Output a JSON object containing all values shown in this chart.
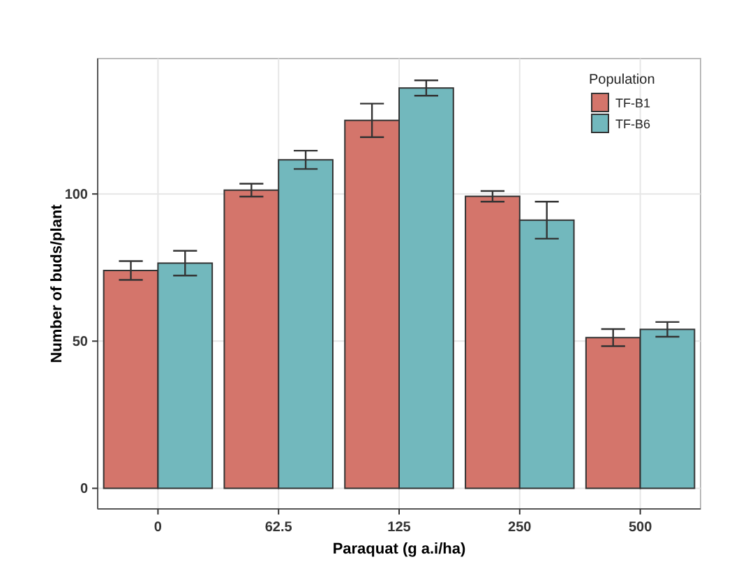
{
  "chart_data": {
    "type": "bar",
    "xlabel": "Paraquat (g a.i/ha)",
    "ylabel": "Number of buds/plant",
    "legend_title": "Population",
    "categories": [
      "0",
      "62.5",
      "125",
      "250",
      "500"
    ],
    "series": [
      {
        "name": "TF-B1",
        "color": "#d4756b",
        "values": [
          74,
          101.3,
          125,
          99.2,
          51.2
        ],
        "errors": [
          3.2,
          2.2,
          5.7,
          1.8,
          2.9
        ]
      },
      {
        "name": "TF-B6",
        "color": "#72b8bd",
        "values": [
          76.5,
          111.6,
          136,
          91.1,
          54
        ],
        "errors": [
          4.2,
          3.1,
          2.6,
          6.3,
          2.5
        ]
      }
    ],
    "ylim": [
      -7,
      146
    ],
    "yticks": [
      0,
      50,
      100
    ],
    "grid": true,
    "legend": "top right"
  }
}
